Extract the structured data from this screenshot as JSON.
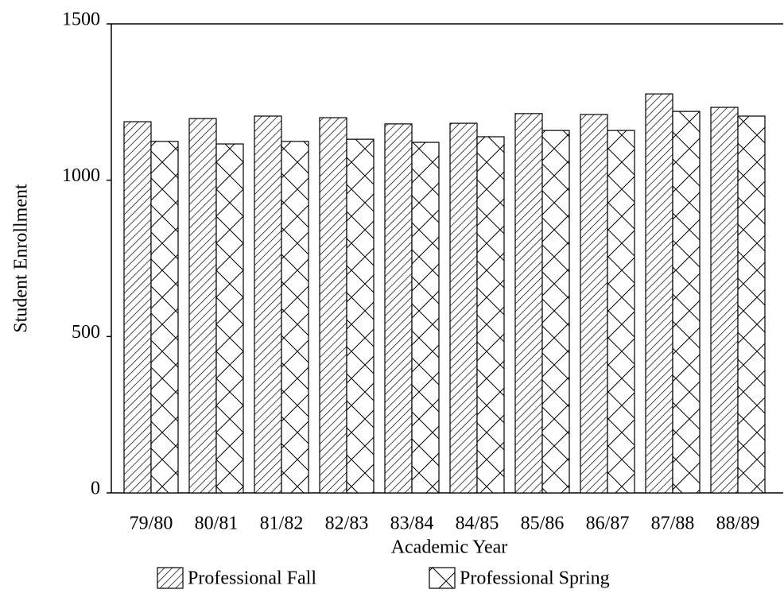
{
  "chart_data": {
    "type": "bar",
    "categories": [
      "79/80",
      "80/81",
      "81/82",
      "82/83",
      "83/84",
      "84/85",
      "85/86",
      "86/87",
      "87/88",
      "88/89"
    ],
    "series": [
      {
        "name": "Professional Fall",
        "color": "#000000",
        "pattern": "hatch",
        "values": [
          1187,
          1197,
          1205,
          1200,
          1180,
          1182,
          1213,
          1210,
          1276,
          1233
        ]
      },
      {
        "name": "Professional Spring",
        "color": "#000000",
        "pattern": "cross",
        "values": [
          1124,
          1116,
          1124,
          1131,
          1121,
          1139,
          1159,
          1159,
          1220,
          1205
        ]
      }
    ],
    "xlabel": "Academic Year",
    "ylabel": "Student Enrollment",
    "ylim": [
      0,
      1500
    ],
    "yticks": [
      0,
      500,
      1000,
      1500
    ],
    "grid": false,
    "legend": "bottom"
  }
}
